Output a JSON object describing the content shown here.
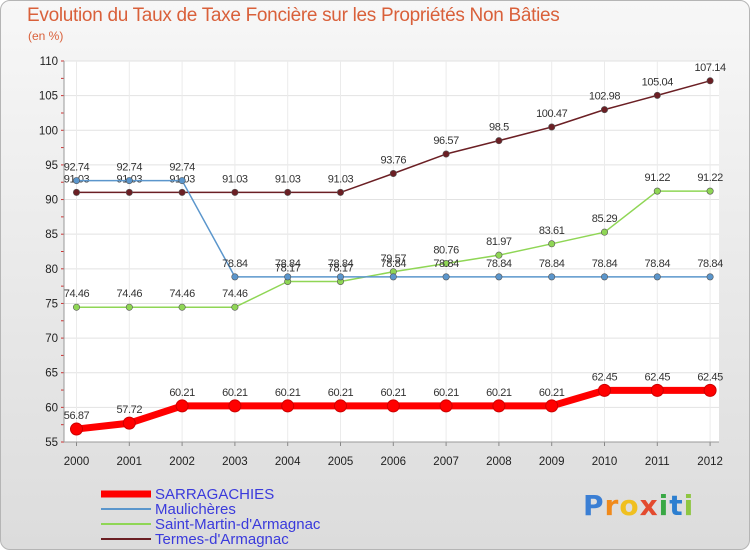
{
  "title": "Evolution du Taux de Taxe Foncière sur les Propriétés Non Bâties",
  "unit": "(en %)",
  "logo": "Proxiti",
  "colors": {
    "SARRAGACHIES": "#ff0000",
    "Maulichères": "#5b96cc",
    "Saint-Martin-d'Armagnac": "#8fd655",
    "Termes-d'Armagnac": "#6b1f24"
  },
  "chart_data": {
    "type": "line",
    "title": "Evolution du Taux de Taxe Foncière sur les Propriétés Non Bâties",
    "ylabel": "(en %)",
    "xlabel": "",
    "ylim": [
      55,
      110
    ],
    "yticks": [
      55,
      60,
      65,
      70,
      75,
      80,
      85,
      90,
      95,
      100,
      105,
      110
    ],
    "categories": [
      "2000",
      "2001",
      "2002",
      "2003",
      "2004",
      "2005",
      "2006",
      "2007",
      "2008",
      "2009",
      "2010",
      "2011",
      "2012"
    ],
    "series": [
      {
        "name": "SARRAGACHIES",
        "values": [
          56.87,
          57.72,
          60.21,
          60.21,
          60.21,
          60.21,
          60.21,
          60.21,
          60.21,
          60.21,
          62.45,
          62.45,
          62.45
        ],
        "labels": [
          "56.87",
          "57.72",
          "60.21",
          "60.21",
          "60.21",
          "60.21",
          "60.21",
          "60.21",
          "60.21",
          "60.21",
          "62.45",
          "62.45",
          "62.45"
        ]
      },
      {
        "name": "Maulichères",
        "values": [
          92.74,
          92.74,
          92.74,
          78.84,
          78.84,
          78.84,
          78.84,
          78.84,
          78.84,
          78.84,
          78.84,
          78.84,
          78.84
        ],
        "labels": [
          "92.74",
          "92.74",
          "92.74",
          "78.84",
          "78.84",
          "78.84",
          "78.84",
          "78.84",
          "78.84",
          "78.84",
          "78.84",
          "78.84",
          "78.84"
        ]
      },
      {
        "name": "Saint-Martin-d'Armagnac",
        "values": [
          74.46,
          74.46,
          74.46,
          74.46,
          78.17,
          78.17,
          79.57,
          80.76,
          81.97,
          83.61,
          85.29,
          91.22,
          91.22
        ],
        "labels": [
          "74.46",
          "74.46",
          "74.46",
          "74.46",
          "78.17",
          "78.17",
          "79.57",
          "80.76",
          "81.97",
          "83.61",
          "85.29",
          "91.22",
          "91.22"
        ]
      },
      {
        "name": "Termes-d'Armagnac",
        "values": [
          91.03,
          91.03,
          91.03,
          91.03,
          91.03,
          91.03,
          93.76,
          96.57,
          98.5,
          100.47,
          102.98,
          105.04,
          107.14
        ],
        "labels": [
          "91.03",
          "91.03",
          "91.03",
          "91.03",
          "91.03",
          "91.03",
          "93.76",
          "96.57",
          "98.5",
          "100.47",
          "102.98",
          "105.04",
          "107.14"
        ]
      }
    ],
    "legend_position": "bottom-left",
    "grid": true
  }
}
